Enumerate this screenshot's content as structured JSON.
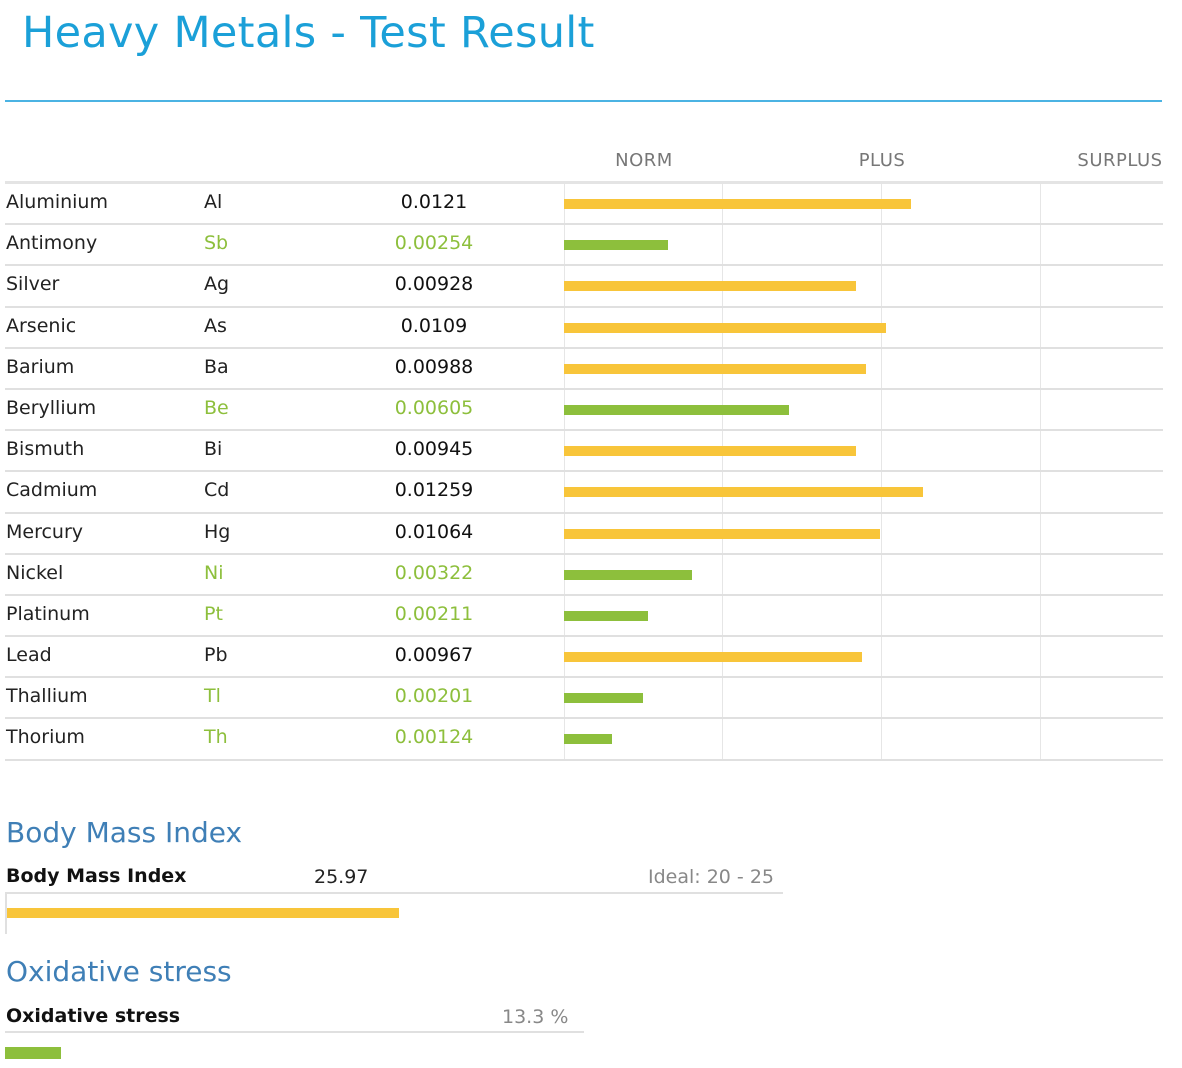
{
  "page": {
    "title": "Heavy Metals - Test Result"
  },
  "metals": {
    "headers": [
      "NORM",
      "PLUS",
      "SURPLUS"
    ],
    "rows": [
      {
        "name": "Aluminium",
        "symbol": "Al",
        "value": "0.0121",
        "status": "high",
        "level": 0.579
      },
      {
        "name": "Antimony",
        "symbol": "Sb",
        "value": "0.00254",
        "status": "normal",
        "level": 0.174
      },
      {
        "name": "Silver",
        "symbol": "Ag",
        "value": "0.00928",
        "status": "high",
        "level": 0.487
      },
      {
        "name": "Arsenic",
        "symbol": "As",
        "value": "0.0109",
        "status": "high",
        "level": 0.538
      },
      {
        "name": "Barium",
        "symbol": "Ba",
        "value": "0.00988",
        "status": "high",
        "level": 0.505
      },
      {
        "name": "Beryllium",
        "symbol": "Be",
        "value": "0.00605",
        "status": "normal",
        "level": 0.375
      },
      {
        "name": "Bismuth",
        "symbol": "Bi",
        "value": "0.00945",
        "status": "high",
        "level": 0.487
      },
      {
        "name": "Cadmium",
        "symbol": "Cd",
        "value": "0.01259",
        "status": "high",
        "level": 0.599
      },
      {
        "name": "Mercury",
        "symbol": "Hg",
        "value": "0.01064",
        "status": "high",
        "level": 0.527
      },
      {
        "name": "Nickel",
        "symbol": "Ni",
        "value": "0.00322",
        "status": "normal",
        "level": 0.214
      },
      {
        "name": "Platinum",
        "symbol": "Pt",
        "value": "0.00211",
        "status": "normal",
        "level": 0.141
      },
      {
        "name": "Lead",
        "symbol": "Pb",
        "value": "0.00967",
        "status": "high",
        "level": 0.497
      },
      {
        "name": "Thallium",
        "symbol": "Tl",
        "value": "0.00201",
        "status": "normal",
        "level": 0.132
      },
      {
        "name": "Thorium",
        "symbol": "Th",
        "value": "0.00124",
        "status": "normal",
        "level": 0.08
      }
    ]
  },
  "bmi": {
    "section_title": "Body Mass Index",
    "label": "Body Mass Index",
    "value": "25.97",
    "ideal": "Ideal: 20 - 25",
    "level": 0.505
  },
  "oxidative": {
    "section_title": "Oxidative stress",
    "label": "Oxidative stress",
    "value": "13.3 %",
    "level": 0.097
  },
  "colors": {
    "title": "#1ba0d8",
    "section_title": "#3f7fb6",
    "high_bar": "#f8c53a",
    "normal": "#8dbf3c"
  }
}
